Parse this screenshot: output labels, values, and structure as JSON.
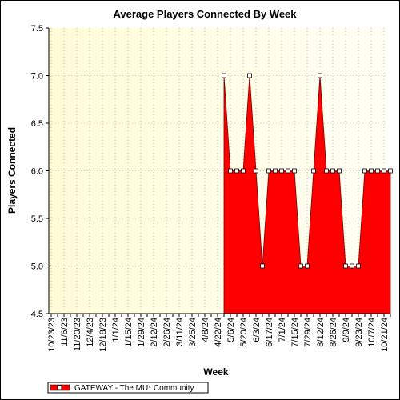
{
  "chart_data": {
    "type": "area",
    "title": "Average Players Connected By Week",
    "xlabel": "Week",
    "ylabel": "Players Connected",
    "ylim": [
      4.5,
      7.5
    ],
    "yticks": [
      "7.5",
      "7.0",
      "6.5",
      "6.0",
      "5.5",
      "5.0",
      "4.5"
    ],
    "ytick_values": [
      7.5,
      7.0,
      6.5,
      6.0,
      5.5,
      5.0,
      4.5
    ],
    "x_tick_labels": [
      "10/23/23",
      "11/6/23",
      "11/20/23",
      "12/4/23",
      "12/18/23",
      "1/1/24",
      "1/15/24",
      "1/29/24",
      "2/12/24",
      "2/26/24",
      "3/11/24",
      "3/25/24",
      "4/8/24",
      "4/22/24",
      "5/6/24",
      "5/20/24",
      "6/3/24",
      "6/17/24",
      "7/1/24",
      "7/15/24",
      "7/29/24",
      "8/12/24",
      "8/26/24",
      "9/9/24",
      "9/23/24",
      "10/7/24",
      "10/21/24"
    ],
    "x_weeks": [
      "10/23/23",
      "10/30/23",
      "11/6/23",
      "11/13/23",
      "11/20/23",
      "11/27/23",
      "12/4/23",
      "12/11/23",
      "12/18/23",
      "12/25/23",
      "1/1/24",
      "1/8/24",
      "1/15/24",
      "1/22/24",
      "1/29/24",
      "2/5/24",
      "2/12/24",
      "2/19/24",
      "2/26/24",
      "3/4/24",
      "3/11/24",
      "3/18/24",
      "3/25/24",
      "4/1/24",
      "4/8/24",
      "4/15/24",
      "4/22/24",
      "4/29/24",
      "5/6/24",
      "5/13/24",
      "5/20/24",
      "5/27/24",
      "6/3/24",
      "6/10/24",
      "6/17/24",
      "6/24/24",
      "7/1/24",
      "7/8/24",
      "7/15/24",
      "7/22/24",
      "7/29/24",
      "8/5/24",
      "8/12/24",
      "8/19/24",
      "8/26/24",
      "9/2/24",
      "9/9/24",
      "9/16/24",
      "9/23/24",
      "9/30/24",
      "10/7/24",
      "10/14/24",
      "10/21/24",
      "10/28/24"
    ],
    "series": [
      {
        "name": "GATEWAY - The MU* Community",
        "color": "#ff0000",
        "values": [
          null,
          null,
          null,
          null,
          null,
          null,
          null,
          null,
          null,
          null,
          null,
          null,
          null,
          null,
          null,
          null,
          null,
          null,
          null,
          null,
          null,
          null,
          null,
          null,
          null,
          null,
          null,
          7,
          6,
          6,
          6,
          7,
          6,
          5,
          6,
          6,
          6,
          6,
          6,
          5,
          5,
          6,
          7,
          6,
          6,
          6,
          5,
          5,
          5,
          6,
          6,
          6,
          6,
          6
        ]
      }
    ],
    "grid": true,
    "background": "#ffffe0",
    "legend_position": "bottom-left"
  }
}
